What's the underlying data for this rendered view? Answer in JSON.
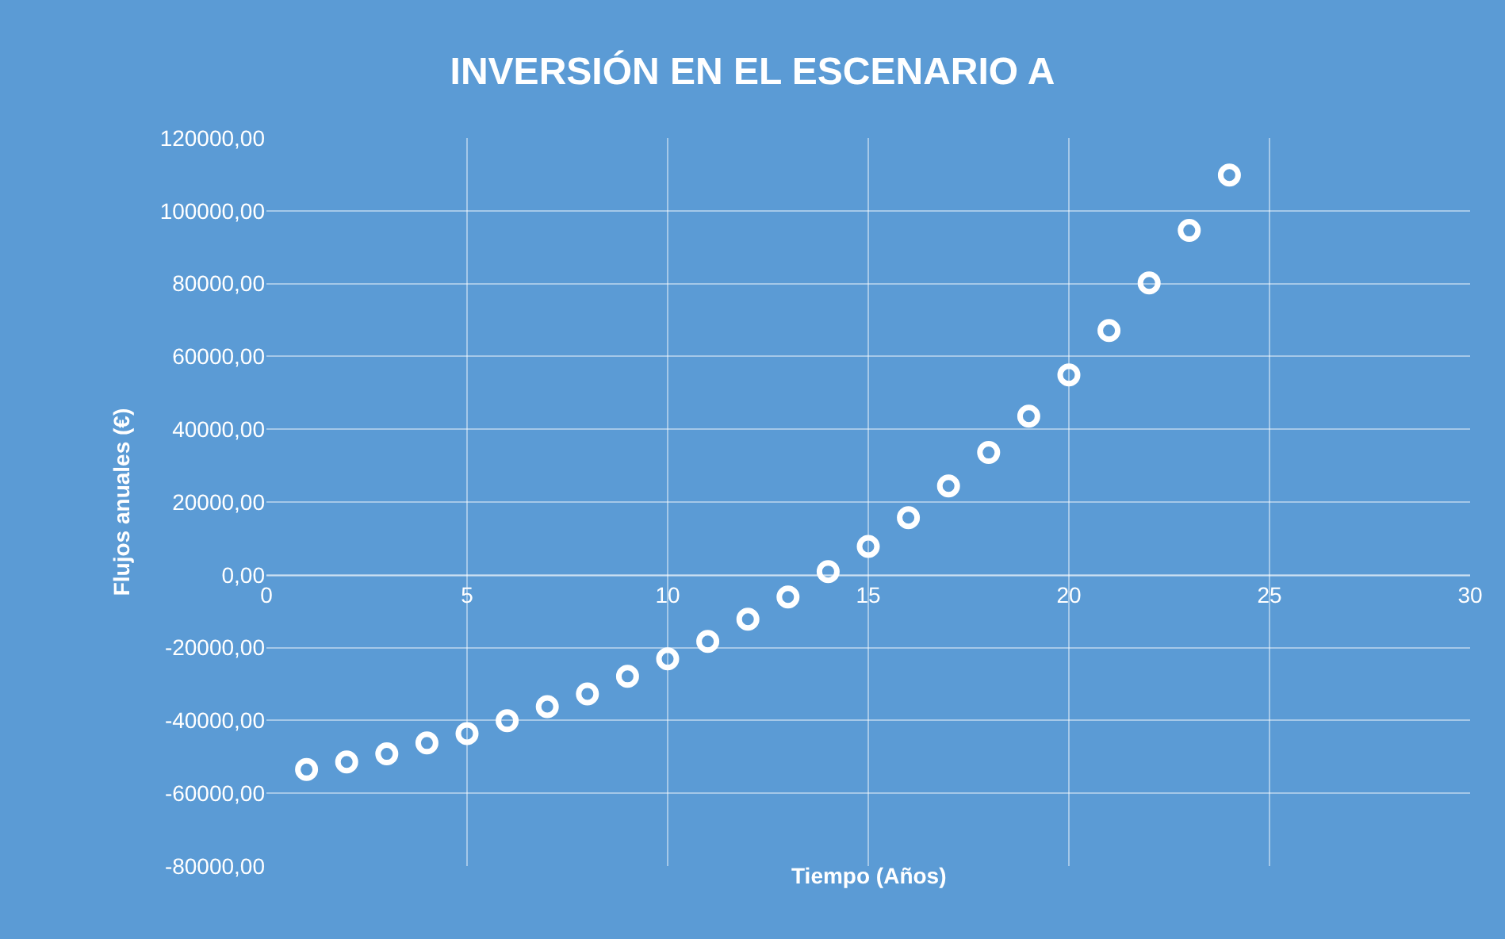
{
  "chart_data": {
    "type": "scatter",
    "title": "INVERSIÓN EN EL ESCENARIO A",
    "xlabel": "Tiempo (Años)",
    "ylabel": "Flujos anuales (€)",
    "x": [
      1,
      2,
      3,
      4,
      5,
      6,
      7,
      8,
      9,
      10,
      11,
      12,
      13,
      14,
      15,
      16,
      17,
      18,
      19,
      20,
      21,
      22,
      23,
      24
    ],
    "series": [
      {
        "color": "#ffffff",
        "values": [
          -53500,
          -51400,
          -49200,
          -46200,
          -43600,
          -40100,
          -36200,
          -32700,
          -27900,
          -23100,
          -18300,
          -12200,
          -6100,
          900,
          7800,
          15700,
          24400,
          33600,
          43600,
          54900,
          67100,
          80200,
          94600,
          109800
        ]
      }
    ],
    "xlim": [
      0,
      30
    ],
    "xticks": [
      0,
      5,
      10,
      15,
      20,
      25,
      30
    ],
    "ylim": [
      -80000,
      120000
    ],
    "yticks": [
      {
        "value": -80000,
        "label": "-80000,00"
      },
      {
        "value": -60000,
        "label": "-60000,00"
      },
      {
        "value": -40000,
        "label": "-40000,00"
      },
      {
        "value": -20000,
        "label": "-20000,00"
      },
      {
        "value": 0,
        "label": "0,00"
      },
      {
        "value": 20000,
        "label": "20000,00"
      },
      {
        "value": 40000,
        "label": "40000,00"
      },
      {
        "value": 60000,
        "label": "60000,00"
      },
      {
        "value": 80000,
        "label": "80000,00"
      },
      {
        "value": 100000,
        "label": "100000,00"
      },
      {
        "value": 120000,
        "label": "120000,00"
      }
    ],
    "grid": true,
    "legend": false,
    "marker": "circle"
  }
}
